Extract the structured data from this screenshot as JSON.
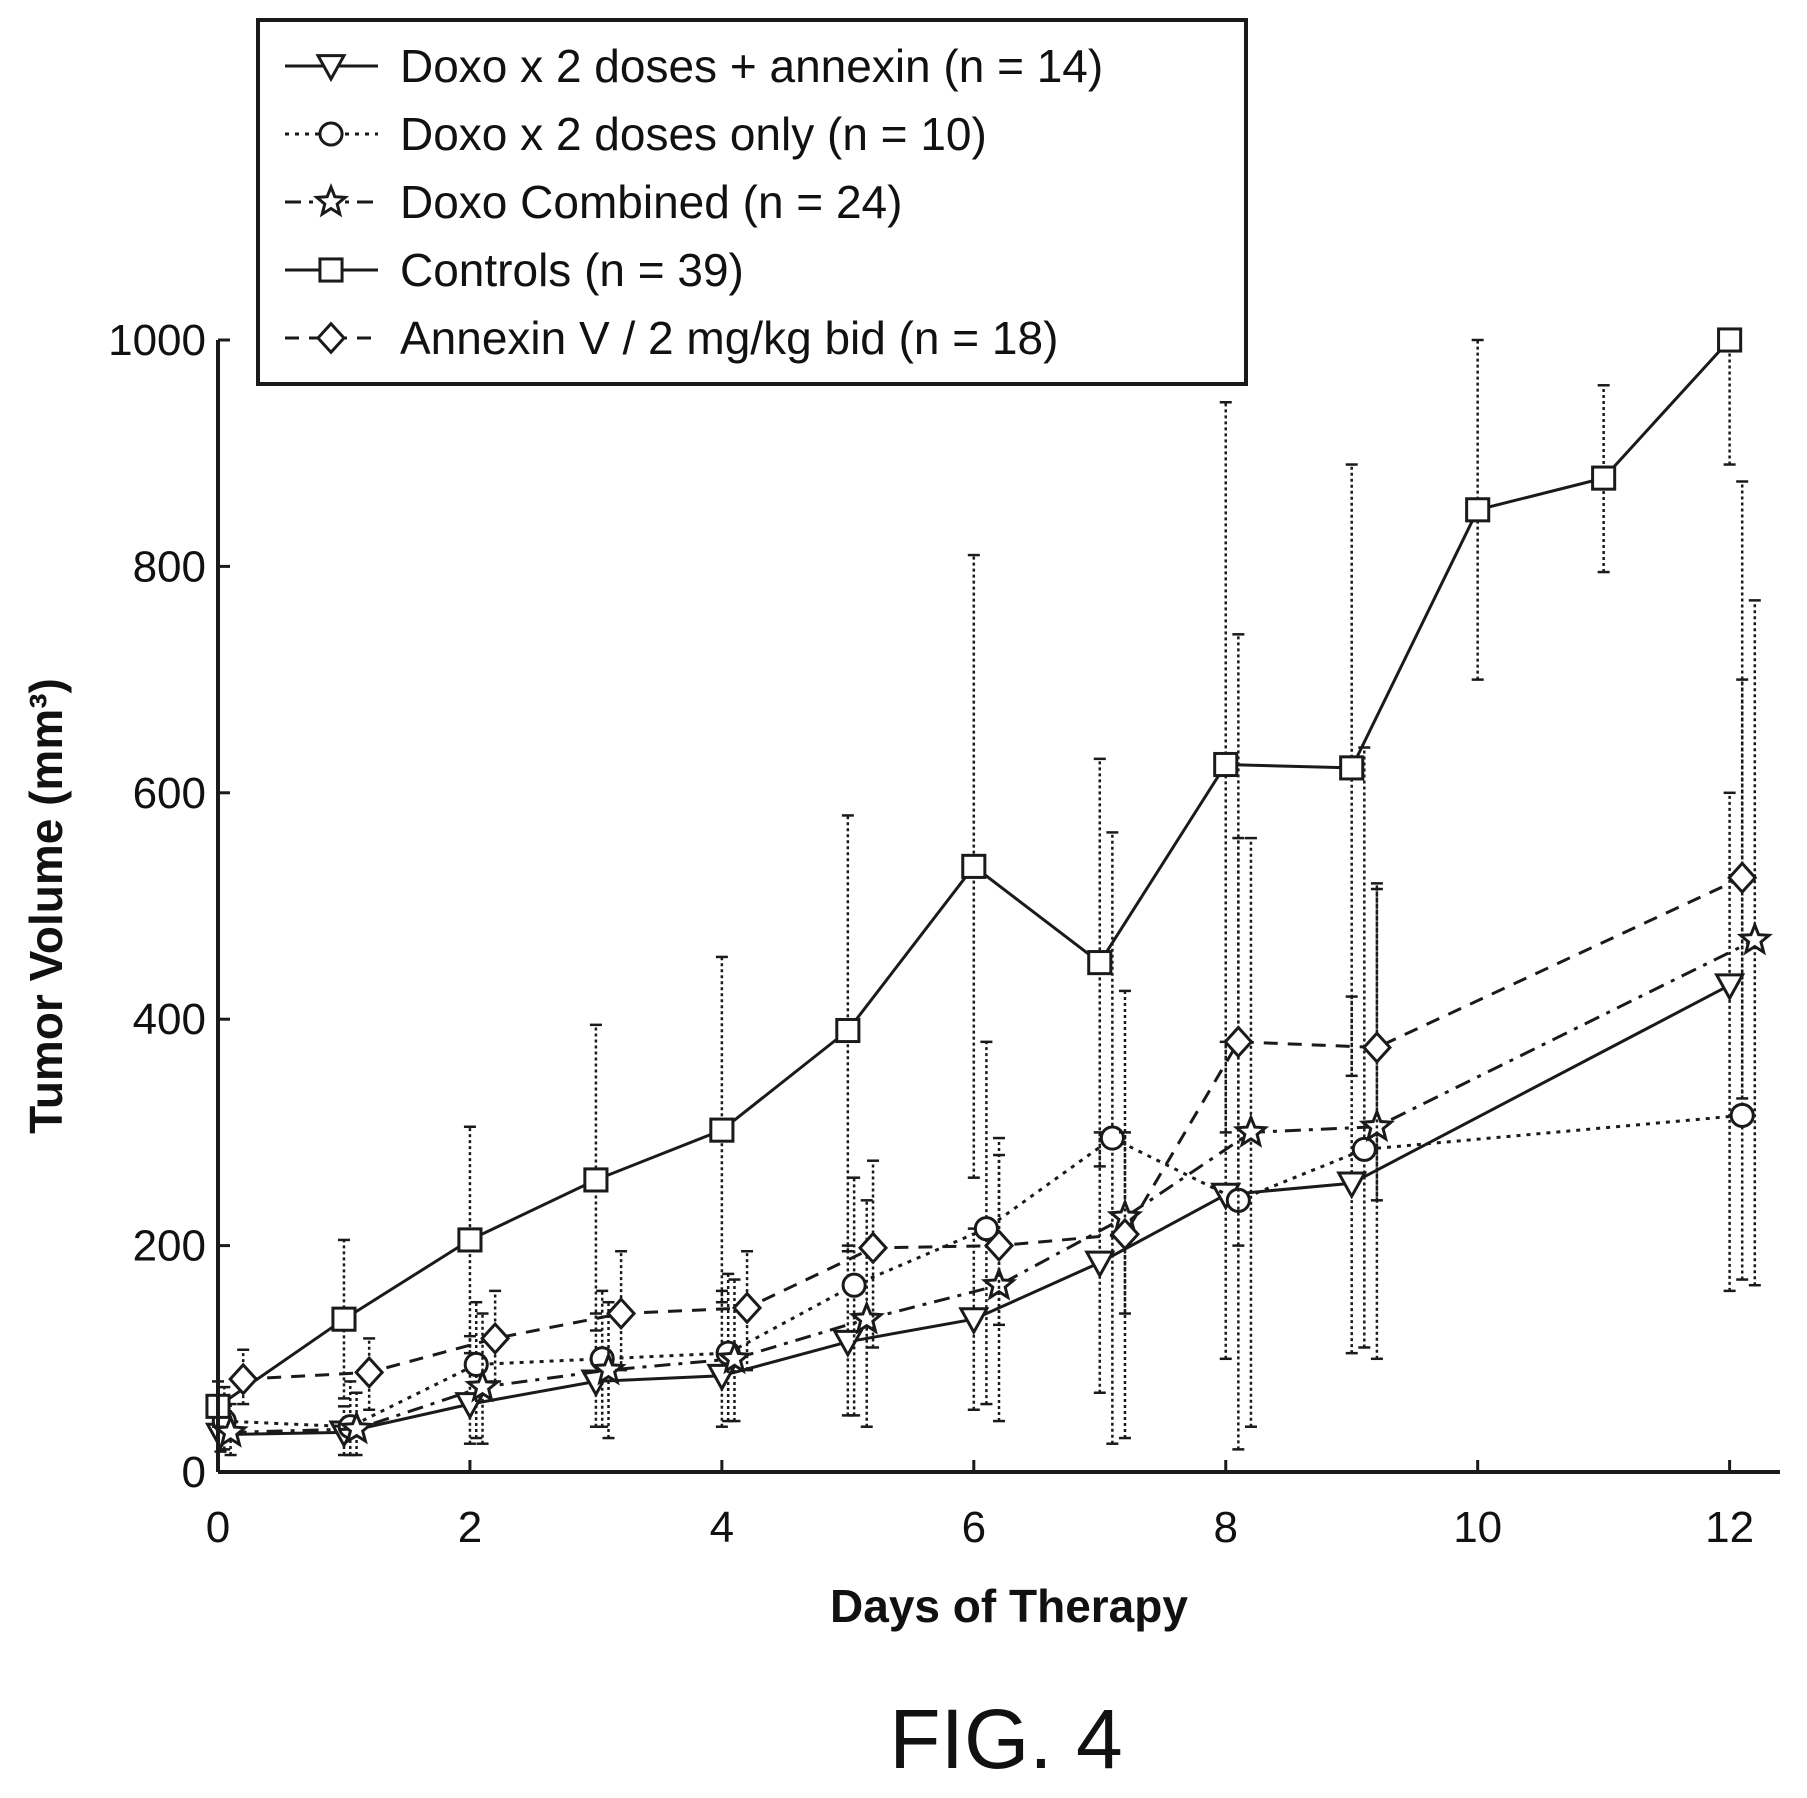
{
  "figure_label": "FIG. 4",
  "chart_data": {
    "type": "line",
    "title": "",
    "xlabel": "Days of Therapy",
    "ylabel": "Tumor Volume (mm³)",
    "xlim": [
      0,
      12.4
    ],
    "ylim": [
      0,
      1000
    ],
    "xticks": [
      0,
      2,
      4,
      6,
      8,
      10,
      12
    ],
    "yticks": [
      0,
      200,
      400,
      600,
      800,
      1000
    ],
    "xtick_labels": [
      "0",
      "2",
      "4",
      "6",
      "8",
      "10",
      "12"
    ],
    "ytick_labels": [
      "0",
      "200",
      "400",
      "600",
      "800",
      "1000"
    ],
    "grid": false,
    "legend_position": "top-left",
    "series": [
      {
        "name": "Doxo x 2 doses + annexin (n = 14)",
        "marker": "triangle-down",
        "dash": "solid",
        "points": [
          {
            "x": 0.02,
            "y": 33,
            "lo": 18,
            "hi": 50
          },
          {
            "x": 1.0,
            "y": 35,
            "lo": 15,
            "hi": 58
          },
          {
            "x": 2.0,
            "y": 60,
            "lo": 25,
            "hi": 120
          },
          {
            "x": 3.0,
            "y": 80,
            "lo": 40,
            "hi": 140
          },
          {
            "x": 4.0,
            "y": 85,
            "lo": 40,
            "hi": 160
          },
          {
            "x": 5.0,
            "y": 115,
            "lo": 50,
            "hi": 200
          },
          {
            "x": 6.0,
            "y": 135,
            "lo": 55,
            "hi": 215
          },
          {
            "x": 7.0,
            "y": 185,
            "lo": 70,
            "hi": 300
          },
          {
            "x": 8.0,
            "y": 245,
            "lo": 100,
            "hi": 380
          },
          {
            "x": 9.0,
            "y": 255,
            "lo": 105,
            "hi": 420
          },
          {
            "x": 12.0,
            "y": 430,
            "lo": 160,
            "hi": 600
          }
        ]
      },
      {
        "name": "Doxo x 2 doses only (n = 10)",
        "marker": "circle",
        "dash": "dotted",
        "points": [
          {
            "x": 0.05,
            "y": 45,
            "lo": 20,
            "hi": 75
          },
          {
            "x": 1.05,
            "y": 40,
            "lo": 15,
            "hi": 80
          },
          {
            "x": 2.05,
            "y": 95,
            "lo": 30,
            "hi": 150
          },
          {
            "x": 3.05,
            "y": 100,
            "lo": 40,
            "hi": 160
          },
          {
            "x": 4.05,
            "y": 105,
            "lo": 45,
            "hi": 175
          },
          {
            "x": 5.05,
            "y": 165,
            "lo": 50,
            "hi": 260
          },
          {
            "x": 6.1,
            "y": 215,
            "lo": 60,
            "hi": 380
          },
          {
            "x": 7.1,
            "y": 295,
            "lo": 25,
            "hi": 565
          },
          {
            "x": 8.1,
            "y": 240,
            "lo": 20,
            "hi": 740
          },
          {
            "x": 9.1,
            "y": 285,
            "lo": 110,
            "hi": 640
          },
          {
            "x": 12.1,
            "y": 315,
            "lo": 170,
            "hi": 875
          }
        ]
      },
      {
        "name": "Doxo Combined (n = 24)",
        "marker": "star",
        "dash": "dashdot",
        "points": [
          {
            "x": 0.1,
            "y": 35,
            "lo": 15,
            "hi": 60
          },
          {
            "x": 1.1,
            "y": 38,
            "lo": 15,
            "hi": 70
          },
          {
            "x": 2.1,
            "y": 75,
            "lo": 25,
            "hi": 140
          },
          {
            "x": 3.1,
            "y": 90,
            "lo": 30,
            "hi": 150
          },
          {
            "x": 4.1,
            "y": 100,
            "lo": 45,
            "hi": 170
          },
          {
            "x": 5.15,
            "y": 135,
            "lo": 40,
            "hi": 240
          },
          {
            "x": 6.2,
            "y": 165,
            "lo": 45,
            "hi": 295
          },
          {
            "x": 7.2,
            "y": 225,
            "lo": 30,
            "hi": 425
          },
          {
            "x": 8.2,
            "y": 300,
            "lo": 40,
            "hi": 560
          },
          {
            "x": 9.2,
            "y": 305,
            "lo": 100,
            "hi": 515
          },
          {
            "x": 12.2,
            "y": 470,
            "lo": 165,
            "hi": 770
          }
        ]
      },
      {
        "name": "Controls (n = 39)",
        "marker": "square",
        "dash": "solid",
        "points": [
          {
            "x": 0.0,
            "y": 58,
            "lo": 40,
            "hi": 80
          },
          {
            "x": 1.0,
            "y": 135,
            "lo": 65,
            "hi": 205
          },
          {
            "x": 2.0,
            "y": 205,
            "lo": 105,
            "hi": 305
          },
          {
            "x": 3.0,
            "y": 258,
            "lo": 125,
            "hi": 395
          },
          {
            "x": 4.0,
            "y": 302,
            "lo": 150,
            "hi": 455
          },
          {
            "x": 5.0,
            "y": 390,
            "lo": 195,
            "hi": 580
          },
          {
            "x": 6.0,
            "y": 535,
            "lo": 260,
            "hi": 810
          },
          {
            "x": 7.0,
            "y": 450,
            "lo": 270,
            "hi": 630
          },
          {
            "x": 8.0,
            "y": 625,
            "lo": 300,
            "hi": 945
          },
          {
            "x": 9.0,
            "y": 622,
            "lo": 350,
            "hi": 890
          },
          {
            "x": 10.0,
            "y": 850,
            "lo": 700,
            "hi": 1000
          },
          {
            "x": 11.0,
            "y": 878,
            "lo": 795,
            "hi": 960
          },
          {
            "x": 12.0,
            "y": 1000,
            "lo": 890,
            "hi": 1000
          }
        ]
      },
      {
        "name": "Annexin V / 2 mg/kg bid (n = 18)",
        "marker": "diamond",
        "dash": "dashed",
        "points": [
          {
            "x": 0.2,
            "y": 82,
            "lo": 60,
            "hi": 108
          },
          {
            "x": 1.2,
            "y": 88,
            "lo": 55,
            "hi": 118
          },
          {
            "x": 2.2,
            "y": 118,
            "lo": 80,
            "hi": 160
          },
          {
            "x": 3.2,
            "y": 140,
            "lo": 90,
            "hi": 195
          },
          {
            "x": 4.2,
            "y": 145,
            "lo": 90,
            "hi": 195
          },
          {
            "x": 5.2,
            "y": 198,
            "lo": 110,
            "hi": 275
          },
          {
            "x": 6.2,
            "y": 200,
            "lo": 130,
            "hi": 280
          },
          {
            "x": 7.2,
            "y": 210,
            "lo": 140,
            "hi": 300
          },
          {
            "x": 8.1,
            "y": 380,
            "lo": 200,
            "hi": 560
          },
          {
            "x": 9.2,
            "y": 375,
            "lo": 240,
            "hi": 520
          },
          {
            "x": 12.1,
            "y": 525,
            "lo": 330,
            "hi": 700
          }
        ]
      }
    ]
  }
}
